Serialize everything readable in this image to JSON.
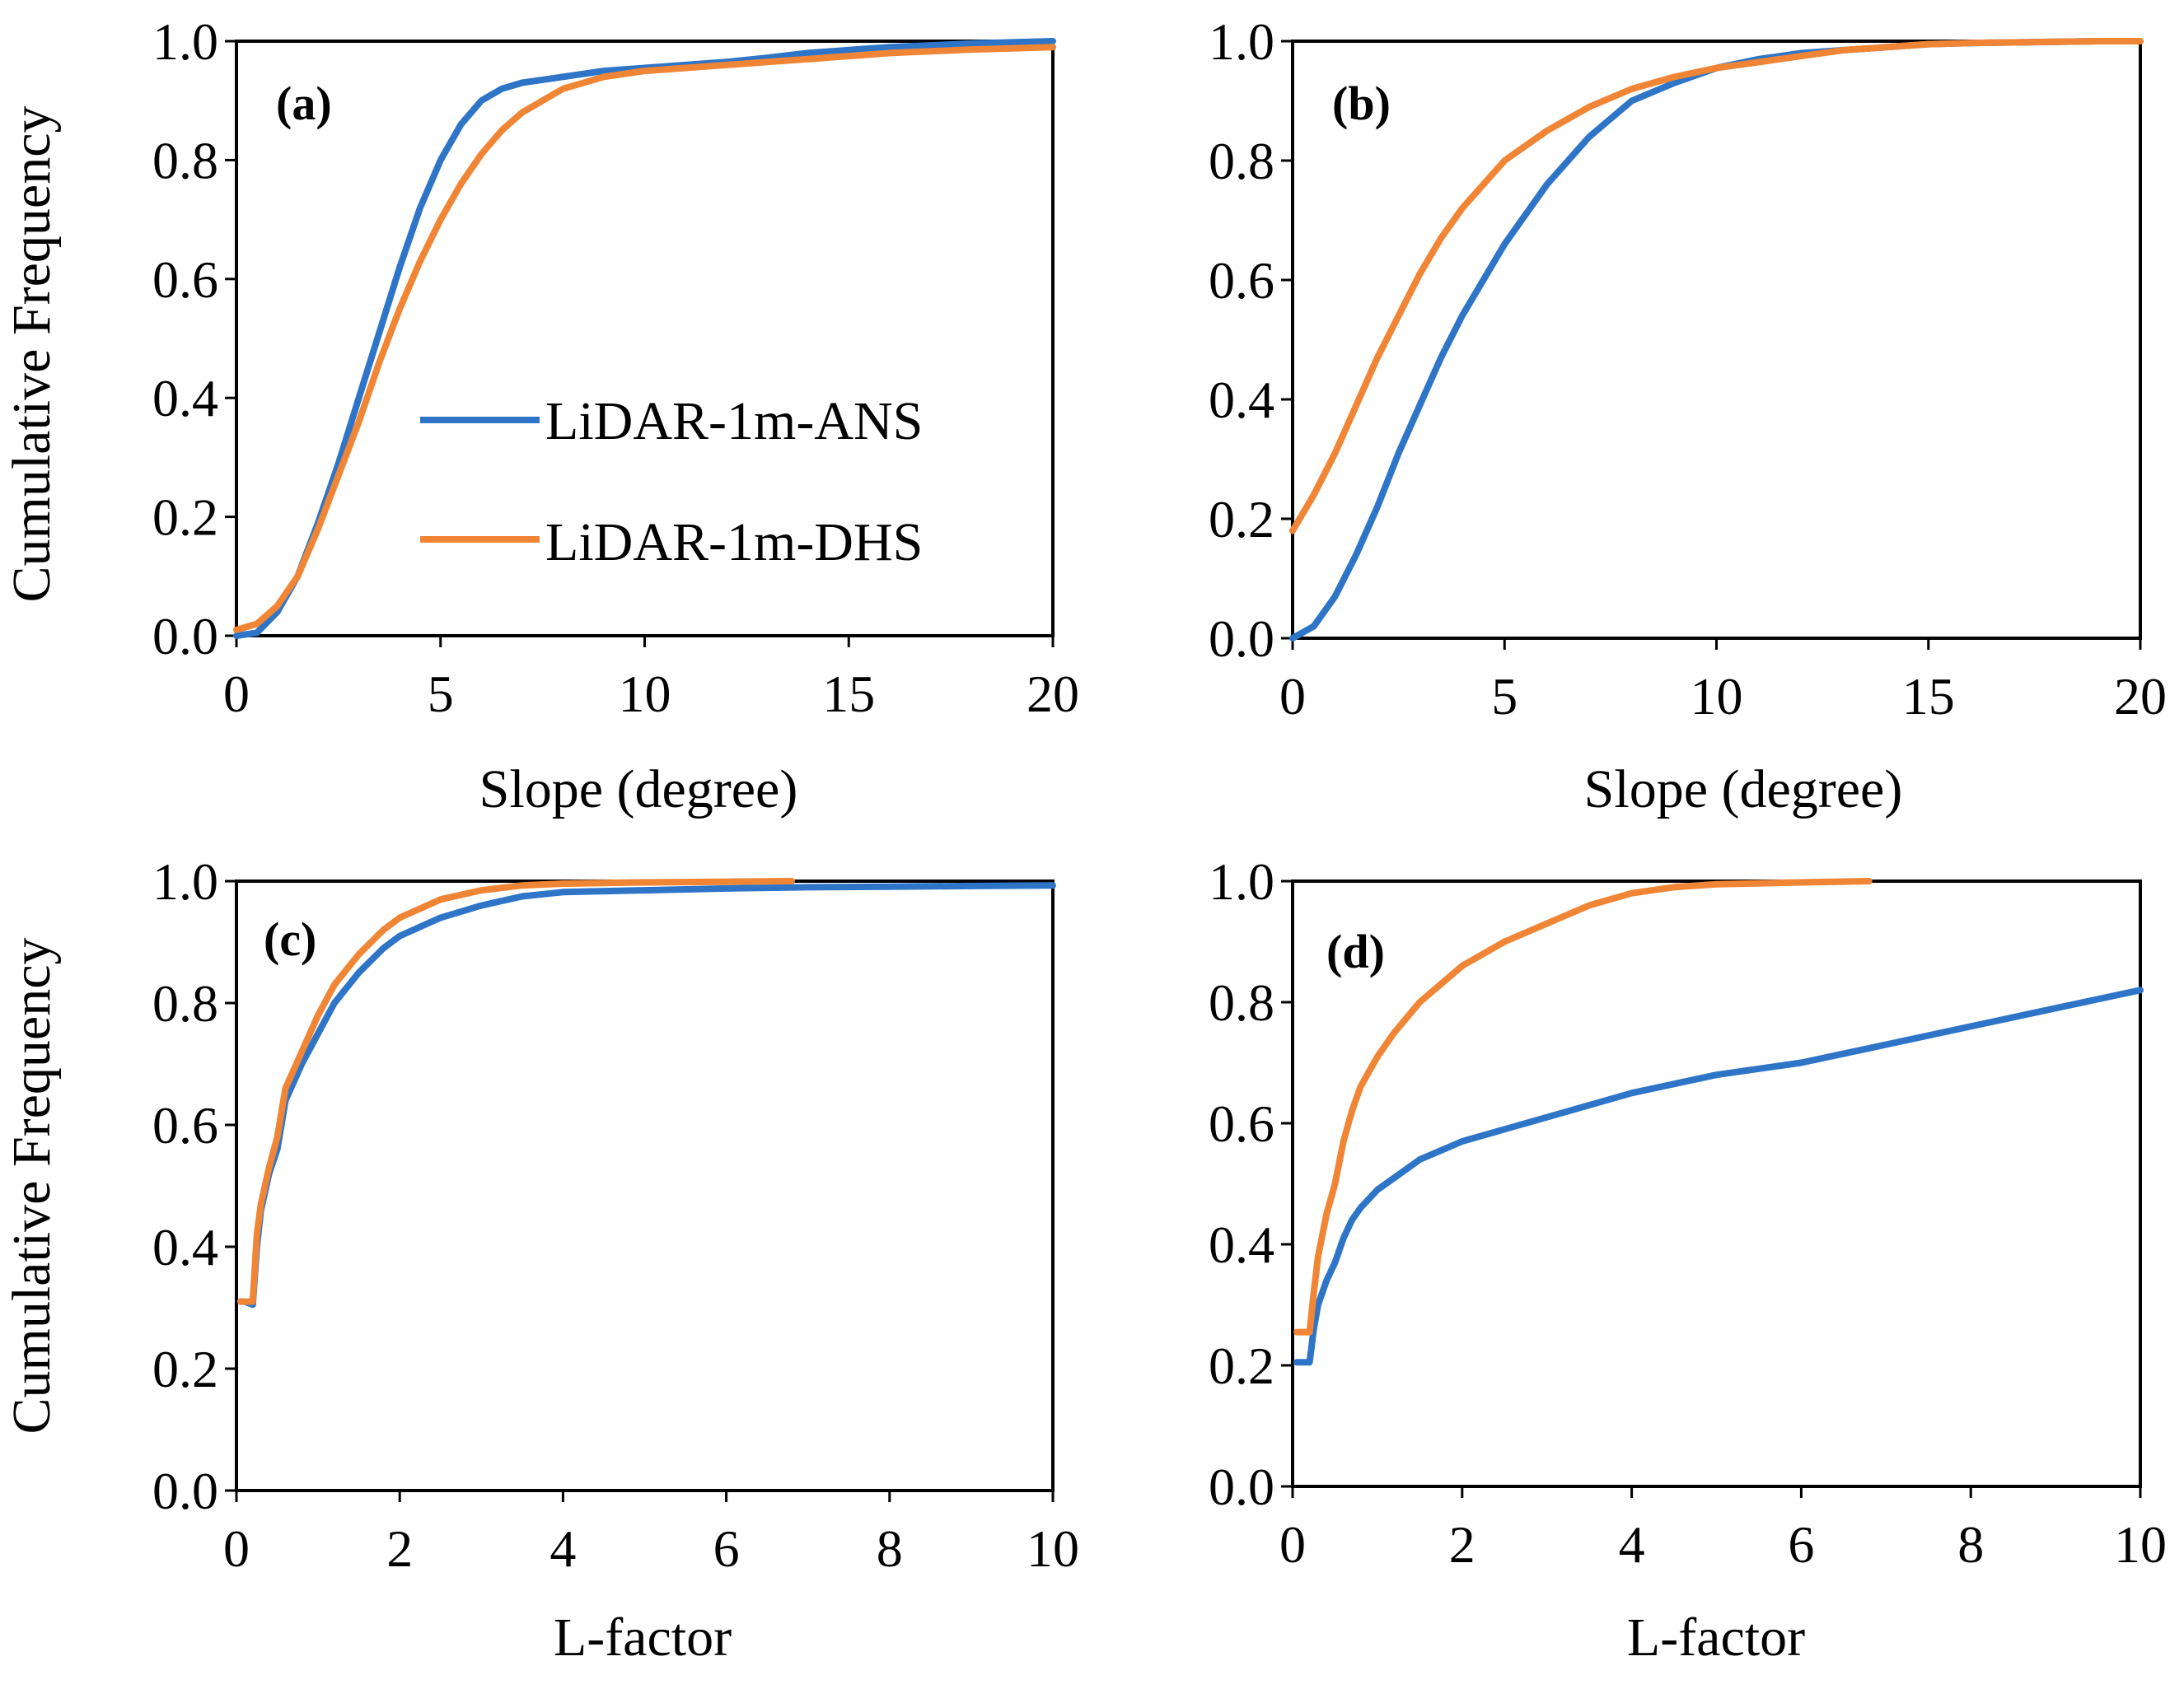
{
  "figure": {
    "legend": {
      "series_names": [
        "LiDAR-1m-ANS",
        "LiDAR-1m-DHS"
      ]
    }
  },
  "colors": {
    "ans": "#2E75C8",
    "dhs": "#F08535"
  },
  "chart_data": [
    {
      "panel": "(a)",
      "type": "line",
      "xlabel": "Slope (degree)",
      "ylabel": "Cumulative Frequency",
      "xlim": [
        0,
        20
      ],
      "ylim": [
        0,
        1
      ],
      "xticks": [
        "0",
        "5",
        "10",
        "15",
        "20"
      ],
      "yticks": [
        "0.0",
        "0.2",
        "0.4",
        "0.6",
        "0.8",
        "1.0"
      ],
      "legend": "center-right",
      "series": [
        {
          "name": "LiDAR-1m-ANS",
          "color": "ans",
          "x": [
            0,
            0.5,
            1,
            1.5,
            2,
            2.5,
            3,
            3.5,
            4,
            4.5,
            5,
            5.5,
            6,
            6.5,
            7,
            7.5,
            8,
            9,
            10,
            11,
            12,
            13,
            14,
            15,
            16,
            17,
            18,
            19,
            20
          ],
          "y": [
            0,
            0.005,
            0.04,
            0.1,
            0.19,
            0.29,
            0.4,
            0.51,
            0.62,
            0.72,
            0.8,
            0.86,
            0.9,
            0.92,
            0.93,
            0.935,
            0.94,
            0.95,
            0.955,
            0.96,
            0.965,
            0.972,
            0.98,
            0.985,
            0.99,
            0.993,
            0.996,
            0.998,
            1.0
          ]
        },
        {
          "name": "LiDAR-1m-DHS",
          "color": "dhs",
          "x": [
            0,
            0.5,
            1,
            1.5,
            2,
            2.5,
            3,
            3.5,
            4,
            4.5,
            5,
            5.5,
            6,
            6.5,
            7,
            7.5,
            8,
            9,
            10,
            11,
            12,
            13,
            14,
            15,
            16,
            17,
            18,
            19,
            20
          ],
          "y": [
            0.01,
            0.02,
            0.05,
            0.1,
            0.18,
            0.27,
            0.36,
            0.46,
            0.55,
            0.63,
            0.7,
            0.76,
            0.81,
            0.85,
            0.88,
            0.9,
            0.92,
            0.94,
            0.95,
            0.955,
            0.96,
            0.965,
            0.97,
            0.975,
            0.98,
            0.983,
            0.986,
            0.988,
            0.99
          ]
        }
      ]
    },
    {
      "panel": "(b)",
      "type": "line",
      "xlabel": "Slope (degree)",
      "ylabel": "",
      "xlim": [
        0,
        20
      ],
      "ylim": [
        0,
        1
      ],
      "xticks": [
        "0",
        "5",
        "10",
        "15",
        "20"
      ],
      "yticks": [
        "0.0",
        "0.2",
        "0.4",
        "0.6",
        "0.8",
        "1.0"
      ],
      "series": [
        {
          "name": "LiDAR-1m-ANS",
          "color": "ans",
          "x": [
            0,
            0.5,
            1,
            1.5,
            2,
            2.5,
            3,
            3.5,
            4,
            5,
            6,
            7,
            8,
            9,
            10,
            11,
            12,
            13,
            14,
            15,
            16,
            17,
            18,
            19,
            20
          ],
          "y": [
            0,
            0.02,
            0.07,
            0.14,
            0.22,
            0.31,
            0.39,
            0.47,
            0.54,
            0.66,
            0.76,
            0.84,
            0.9,
            0.93,
            0.955,
            0.97,
            0.98,
            0.985,
            0.99,
            0.995,
            0.997,
            0.998,
            0.999,
            1.0,
            1.0
          ]
        },
        {
          "name": "LiDAR-1m-DHS",
          "color": "dhs",
          "x": [
            0,
            0.5,
            1,
            1.5,
            2,
            2.5,
            3,
            3.5,
            4,
            5,
            6,
            7,
            8,
            9,
            10,
            11,
            12,
            13,
            14,
            15,
            16,
            17,
            18,
            19,
            20
          ],
          "y": [
            0.18,
            0.24,
            0.31,
            0.39,
            0.47,
            0.54,
            0.61,
            0.67,
            0.72,
            0.8,
            0.85,
            0.89,
            0.92,
            0.94,
            0.955,
            0.965,
            0.975,
            0.985,
            0.99,
            0.995,
            0.997,
            0.998,
            0.999,
            1.0,
            1.0
          ]
        }
      ]
    },
    {
      "panel": "(c)",
      "type": "line",
      "xlabel": "L-factor",
      "ylabel": "Cumulative Frequency",
      "xlim": [
        0,
        10
      ],
      "ylim": [
        0,
        1
      ],
      "xticks": [
        "0",
        "2",
        "4",
        "6",
        "8",
        "10"
      ],
      "yticks": [
        "0.0",
        "0.2",
        "0.4",
        "0.6",
        "0.8",
        "1.0"
      ],
      "series": [
        {
          "name": "LiDAR-1m-ANS",
          "color": "ans",
          "x": [
            0.05,
            0.1,
            0.2,
            0.25,
            0.3,
            0.4,
            0.5,
            0.6,
            0.8,
            1.0,
            1.2,
            1.5,
            1.8,
            2.0,
            2.5,
            3.0,
            3.5,
            4.0,
            5.0,
            6.0,
            7.0,
            8.0,
            9.0,
            10.0
          ],
          "y": [
            0.31,
            0.31,
            0.305,
            0.4,
            0.46,
            0.52,
            0.56,
            0.64,
            0.7,
            0.75,
            0.8,
            0.85,
            0.89,
            0.91,
            0.94,
            0.96,
            0.975,
            0.982,
            0.985,
            0.988,
            0.99,
            0.991,
            0.992,
            0.993
          ]
        },
        {
          "name": "LiDAR-1m-DHS",
          "color": "dhs",
          "x": [
            0.05,
            0.1,
            0.2,
            0.25,
            0.3,
            0.4,
            0.5,
            0.6,
            0.8,
            1.0,
            1.2,
            1.5,
            1.8,
            2.0,
            2.5,
            3.0,
            3.5,
            4.0,
            5.0,
            6.0,
            6.8
          ],
          "y": [
            0.31,
            0.31,
            0.31,
            0.42,
            0.47,
            0.53,
            0.58,
            0.66,
            0.72,
            0.78,
            0.83,
            0.88,
            0.92,
            0.94,
            0.97,
            0.985,
            0.993,
            0.996,
            0.998,
            0.999,
            1.0
          ]
        }
      ]
    },
    {
      "panel": "(d)",
      "type": "line",
      "xlabel": "L-factor",
      "ylabel": "",
      "xlim": [
        0,
        10
      ],
      "ylim": [
        0,
        1
      ],
      "xticks": [
        "0",
        "2",
        "4",
        "6",
        "8",
        "10"
      ],
      "yticks": [
        "0.0",
        "0.2",
        "0.4",
        "0.6",
        "0.8",
        "1.0"
      ],
      "series": [
        {
          "name": "LiDAR-1m-ANS",
          "color": "ans",
          "x": [
            0.05,
            0.1,
            0.2,
            0.25,
            0.3,
            0.4,
            0.5,
            0.6,
            0.7,
            0.8,
            1.0,
            1.2,
            1.5,
            2.0,
            2.5,
            3.0,
            4.0,
            5.0,
            6.0,
            7.0,
            8.0,
            9.0,
            10.0
          ],
          "y": [
            0.205,
            0.205,
            0.205,
            0.26,
            0.3,
            0.34,
            0.37,
            0.41,
            0.44,
            0.46,
            0.49,
            0.51,
            0.54,
            0.57,
            0.59,
            0.61,
            0.65,
            0.68,
            0.7,
            0.73,
            0.76,
            0.79,
            0.82
          ]
        },
        {
          "name": "LiDAR-1m-DHS",
          "color": "dhs",
          "x": [
            0.05,
            0.1,
            0.2,
            0.25,
            0.3,
            0.4,
            0.5,
            0.6,
            0.7,
            0.8,
            1.0,
            1.2,
            1.5,
            2.0,
            2.5,
            3.0,
            3.5,
            4.0,
            4.5,
            5.0,
            6.0,
            6.8
          ],
          "y": [
            0.255,
            0.255,
            0.255,
            0.32,
            0.38,
            0.45,
            0.5,
            0.57,
            0.62,
            0.66,
            0.71,
            0.75,
            0.8,
            0.86,
            0.9,
            0.93,
            0.96,
            0.98,
            0.99,
            0.995,
            0.998,
            1.0
          ]
        }
      ]
    }
  ]
}
